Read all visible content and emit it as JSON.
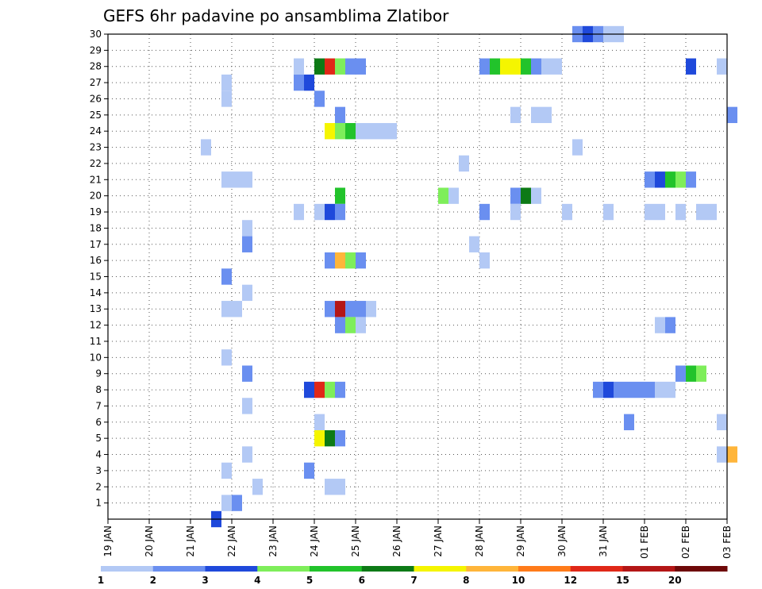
{
  "chart_data": {
    "type": "heatmap",
    "title": "GEFS 6hr padavine po ansamblima Zlatibor",
    "xlabel": "",
    "ylabel": "",
    "x_tick_labels": [
      "19 JAN",
      "20 JAN",
      "21 JAN",
      "22 JAN",
      "23 JAN",
      "24 JAN",
      "25 JAN",
      "26 JAN",
      "27 JAN",
      "28 JAN",
      "29 JAN",
      "30 JAN",
      "31 JAN",
      "01 FEB",
      "02 FEB",
      "03 FEB"
    ],
    "y_tick_labels": [
      "1",
      "2",
      "3",
      "4",
      "5",
      "6",
      "7",
      "8",
      "9",
      "10",
      "11",
      "12",
      "13",
      "14",
      "15",
      "16",
      "17",
      "18",
      "19",
      "20",
      "21",
      "22",
      "23",
      "24",
      "25",
      "26",
      "27",
      "28",
      "29",
      "30"
    ],
    "x_range_steps": [
      0,
      60
    ],
    "steps_per_day": 4,
    "y_range_members": [
      0,
      30
    ],
    "grid": true,
    "legend": {
      "position": "bottom",
      "colors": [
        "#b3c9f5",
        "#6a8ff0",
        "#1f49db",
        "#7eee5a",
        "#22c32b",
        "#0d7a16",
        "#f5f500",
        "#ffb53a",
        "#ff7b1a",
        "#e02818",
        "#b41616",
        "#6e0909"
      ],
      "labels": [
        "1",
        "2",
        "3",
        "4",
        "5",
        "6",
        "7",
        "8",
        "10",
        "12",
        "15",
        "20"
      ]
    },
    "palette": {
      "L": "#b3c9f5",
      "M": "#6a8ff0",
      "B": "#1f49db",
      "G": "#7eee5a",
      "E": "#22c32b",
      "D": "#0d7a16",
      "Y": "#f5f500",
      "O": "#ffb53a",
      "R": "#e02818",
      "K": "#b41616"
    },
    "cells": [
      [
        30,
        45,
        1,
        "M"
      ],
      [
        30,
        46,
        1,
        "B"
      ],
      [
        30,
        47,
        1,
        "M"
      ],
      [
        30,
        48,
        2,
        "L"
      ],
      [
        28,
        18,
        1,
        "L"
      ],
      [
        28,
        20,
        1,
        "D"
      ],
      [
        28,
        21,
        1,
        "R"
      ],
      [
        28,
        22,
        1,
        "G"
      ],
      [
        28,
        23,
        2,
        "M"
      ],
      [
        28,
        36,
        1,
        "M"
      ],
      [
        28,
        37,
        1,
        "E"
      ],
      [
        28,
        38,
        2,
        "Y"
      ],
      [
        28,
        40,
        1,
        "E"
      ],
      [
        28,
        41,
        1,
        "M"
      ],
      [
        28,
        42,
        2,
        "L"
      ],
      [
        28,
        56,
        1,
        "B"
      ],
      [
        28,
        59,
        1,
        "L"
      ],
      [
        27,
        11,
        1,
        "L"
      ],
      [
        27,
        18,
        1,
        "M"
      ],
      [
        27,
        19,
        1,
        "B"
      ],
      [
        26,
        11,
        1,
        "L"
      ],
      [
        26,
        20,
        1,
        "M"
      ],
      [
        25,
        22,
        1,
        "M"
      ],
      [
        25,
        39,
        1,
        "L"
      ],
      [
        25,
        41,
        2,
        "L"
      ],
      [
        25,
        60,
        1,
        "M"
      ],
      [
        24,
        21,
        1,
        "Y"
      ],
      [
        24,
        22,
        1,
        "G"
      ],
      [
        24,
        23,
        1,
        "E"
      ],
      [
        24,
        24,
        4,
        "L"
      ],
      [
        23,
        9,
        1,
        "L"
      ],
      [
        23,
        45,
        1,
        "L"
      ],
      [
        22,
        34,
        1,
        "L"
      ],
      [
        21,
        11,
        3,
        "L"
      ],
      [
        21,
        52,
        1,
        "M"
      ],
      [
        21,
        53,
        1,
        "B"
      ],
      [
        21,
        54,
        1,
        "E"
      ],
      [
        21,
        55,
        1,
        "G"
      ],
      [
        21,
        56,
        1,
        "M"
      ],
      [
        20,
        22,
        1,
        "E"
      ],
      [
        20,
        32,
        1,
        "G"
      ],
      [
        20,
        33,
        1,
        "L"
      ],
      [
        20,
        39,
        1,
        "M"
      ],
      [
        20,
        40,
        1,
        "D"
      ],
      [
        20,
        41,
        1,
        "L"
      ],
      [
        19,
        18,
        1,
        "L"
      ],
      [
        19,
        20,
        1,
        "L"
      ],
      [
        19,
        21,
        1,
        "B"
      ],
      [
        19,
        22,
        1,
        "M"
      ],
      [
        19,
        36,
        1,
        "M"
      ],
      [
        19,
        39,
        1,
        "L"
      ],
      [
        19,
        44,
        1,
        "L"
      ],
      [
        19,
        48,
        1,
        "L"
      ],
      [
        19,
        52,
        2,
        "L"
      ],
      [
        19,
        55,
        1,
        "L"
      ],
      [
        19,
        57,
        2,
        "L"
      ],
      [
        18,
        13,
        1,
        "L"
      ],
      [
        17,
        13,
        1,
        "M"
      ],
      [
        17,
        35,
        1,
        "L"
      ],
      [
        16,
        21,
        1,
        "M"
      ],
      [
        16,
        22,
        1,
        "O"
      ],
      [
        16,
        23,
        1,
        "G"
      ],
      [
        16,
        24,
        1,
        "M"
      ],
      [
        16,
        36,
        1,
        "L"
      ],
      [
        15,
        11,
        1,
        "M"
      ],
      [
        14,
        13,
        1,
        "L"
      ],
      [
        13,
        11,
        2,
        "L"
      ],
      [
        13,
        21,
        1,
        "M"
      ],
      [
        13,
        22,
        1,
        "K"
      ],
      [
        13,
        23,
        2,
        "M"
      ],
      [
        13,
        25,
        1,
        "L"
      ],
      [
        12,
        22,
        1,
        "M"
      ],
      [
        12,
        23,
        1,
        "G"
      ],
      [
        12,
        24,
        1,
        "L"
      ],
      [
        12,
        53,
        1,
        "L"
      ],
      [
        12,
        54,
        1,
        "M"
      ],
      [
        10,
        11,
        1,
        "L"
      ],
      [
        9,
        13,
        1,
        "M"
      ],
      [
        9,
        55,
        1,
        "M"
      ],
      [
        9,
        56,
        1,
        "E"
      ],
      [
        9,
        57,
        1,
        "G"
      ],
      [
        8,
        19,
        1,
        "B"
      ],
      [
        8,
        20,
        1,
        "R"
      ],
      [
        8,
        21,
        1,
        "G"
      ],
      [
        8,
        22,
        1,
        "M"
      ],
      [
        8,
        47,
        1,
        "M"
      ],
      [
        8,
        48,
        1,
        "B"
      ],
      [
        8,
        49,
        4,
        "M"
      ],
      [
        8,
        53,
        2,
        "L"
      ],
      [
        7,
        13,
        1,
        "L"
      ],
      [
        6,
        20,
        1,
        "L"
      ],
      [
        6,
        50,
        1,
        "M"
      ],
      [
        6,
        59,
        1,
        "L"
      ],
      [
        5,
        20,
        1,
        "Y"
      ],
      [
        5,
        21,
        1,
        "D"
      ],
      [
        5,
        22,
        1,
        "M"
      ],
      [
        4,
        13,
        1,
        "L"
      ],
      [
        4,
        59,
        1,
        "L"
      ],
      [
        4,
        60,
        1,
        "O"
      ],
      [
        3,
        11,
        1,
        "L"
      ],
      [
        3,
        19,
        1,
        "M"
      ],
      [
        2,
        14,
        1,
        "L"
      ],
      [
        2,
        21,
        2,
        "L"
      ],
      [
        1,
        11,
        1,
        "L"
      ],
      [
        1,
        12,
        1,
        "M"
      ],
      [
        0,
        10,
        1,
        "B"
      ]
    ]
  }
}
